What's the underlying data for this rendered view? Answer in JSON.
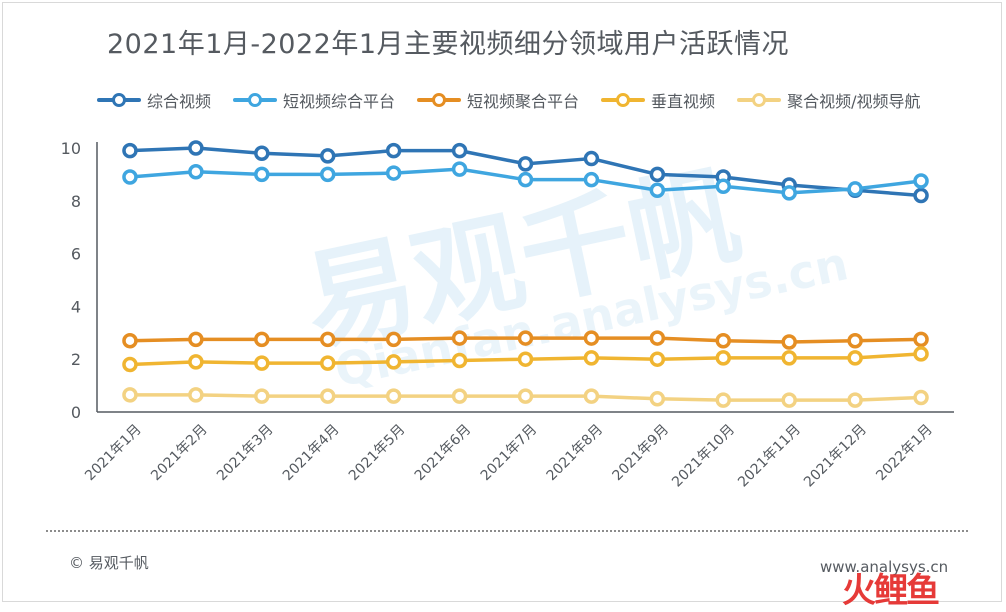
{
  "watermark": {
    "main": "易观千帆",
    "sub": "Qianfan.analysys.cn"
  },
  "footer": {
    "source": "© 易观千帆",
    "url": "www.analysys.cn",
    "corner_logo": "火鲤鱼"
  },
  "colors": {
    "s1": "#2f75b5",
    "s2": "#3fa6e0",
    "s3": "#e58e23",
    "s4": "#f0b531",
    "s5": "#f3d282",
    "axis": "#555a60",
    "tick": "#555a60"
  },
  "chart_data": {
    "type": "line",
    "title": "2021年1月-2022年1月主要视频细分领域用户活跃情况",
    "xlabel": "",
    "ylabel": "",
    "ylim": [
      0,
      10
    ],
    "yticks": [
      0,
      2,
      4,
      6,
      8,
      10
    ],
    "legend_position": "top",
    "grid": false,
    "categories": [
      "2021年1月",
      "2021年2月",
      "2021年3月",
      "2021年4月",
      "2021年5月",
      "2021年6月",
      "2021年7月",
      "2021年8月",
      "2021年9月",
      "2021年10月",
      "2021年11月",
      "2021年12月",
      "2022年1月"
    ],
    "series": [
      {
        "name": "综合视频",
        "color": "#2f75b5",
        "values": [
          9.9,
          10.0,
          9.8,
          9.7,
          9.9,
          9.9,
          9.4,
          9.6,
          9.0,
          8.9,
          8.6,
          8.4,
          8.2
        ]
      },
      {
        "name": "短视频综合平台",
        "color": "#3fa6e0",
        "values": [
          8.9,
          9.1,
          9.0,
          9.0,
          9.05,
          9.2,
          8.8,
          8.8,
          8.4,
          8.55,
          8.3,
          8.45,
          8.75
        ]
      },
      {
        "name": "短视频聚合平台",
        "color": "#e58e23",
        "values": [
          2.7,
          2.75,
          2.75,
          2.75,
          2.75,
          2.8,
          2.8,
          2.8,
          2.8,
          2.7,
          2.65,
          2.7,
          2.75
        ]
      },
      {
        "name": "垂直视频",
        "color": "#f0b531",
        "values": [
          1.8,
          1.9,
          1.85,
          1.85,
          1.9,
          1.95,
          2.0,
          2.05,
          2.0,
          2.05,
          2.05,
          2.05,
          2.2
        ]
      },
      {
        "name": "聚合视频/视频导航",
        "color": "#f3d282",
        "values": [
          0.65,
          0.65,
          0.6,
          0.6,
          0.6,
          0.6,
          0.6,
          0.6,
          0.5,
          0.45,
          0.45,
          0.45,
          0.55
        ]
      }
    ]
  }
}
